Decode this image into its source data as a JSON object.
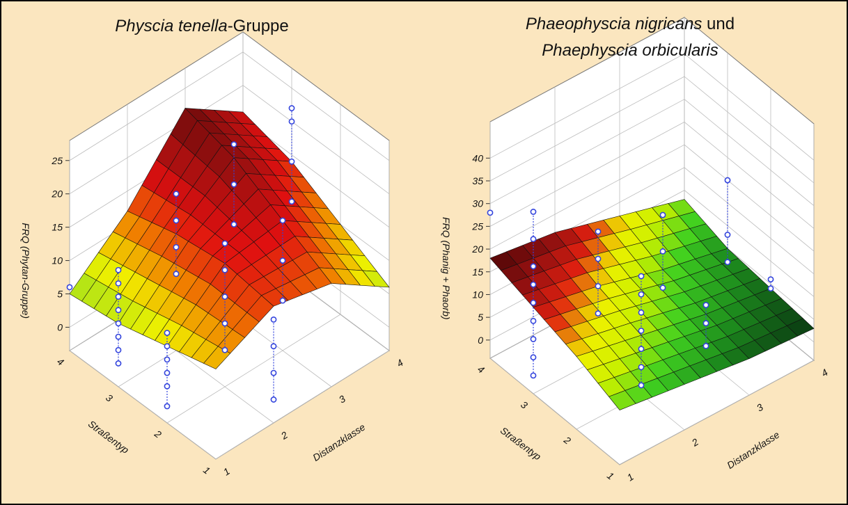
{
  "chart_data": [
    {
      "type": "surface3d",
      "title": [
        [
          {
            "text": "Physcia tenella",
            "italic": true
          },
          {
            "text": "-Gruppe",
            "italic": false
          }
        ]
      ],
      "xlabel": "Distanzklasse",
      "ylabel": "Straßentyp",
      "zlabel": "FRQ (Phytan-Gruppe)",
      "xlim": [
        1,
        4
      ],
      "xticks": [
        1,
        2,
        3,
        4
      ],
      "ylim": [
        1,
        4
      ],
      "yticks": [
        1,
        2,
        3,
        4
      ],
      "zlim": [
        -3.5,
        28
      ],
      "zticks": [
        0,
        5,
        10,
        15,
        20,
        25
      ],
      "grid": true,
      "surface_x": [
        1,
        2,
        3,
        4
      ],
      "surface_y": [
        1,
        2,
        3,
        4
      ],
      "surface_z": [
        [
          10,
          14,
          12,
          6
        ],
        [
          8,
          15,
          16,
          10
        ],
        [
          6,
          14,
          20,
          14
        ],
        [
          5,
          12,
          22,
          16
        ]
      ],
      "surface_colors": [
        "#9ee01e",
        "#f0f000",
        "#f08000",
        "#e01010",
        "#a01010",
        "#6a0a0a"
      ],
      "point_color": "#3344dd",
      "points": {
        "x": [
          1,
          1,
          1,
          1,
          1,
          1,
          1,
          1,
          1,
          1,
          1,
          1,
          1,
          1,
          1,
          2,
          2,
          2,
          2,
          2,
          2,
          2,
          2,
          2,
          2,
          2,
          2,
          2,
          3,
          3,
          3,
          3,
          3,
          3,
          4,
          4,
          4,
          4
        ],
        "y": [
          4,
          3,
          3,
          3,
          3,
          3,
          3,
          3,
          3,
          2,
          2,
          2,
          2,
          2,
          2,
          3,
          3,
          3,
          3,
          2,
          2,
          2,
          2,
          2,
          1,
          1,
          1,
          1,
          3,
          3,
          3,
          2,
          2,
          2,
          3,
          3,
          3,
          3
        ],
        "z": [
          6,
          0,
          2,
          4,
          6,
          8,
          10,
          12,
          14,
          -1,
          2,
          4,
          6,
          8,
          10,
          8,
          12,
          16,
          20,
          2,
          6,
          10,
          14,
          18,
          0,
          4,
          8,
          12,
          10,
          16,
          22,
          4,
          10,
          16,
          8,
          14,
          20,
          22
        ]
      }
    },
    {
      "type": "surface3d",
      "title": [
        [
          {
            "text": "Phaeophyscia nigricans",
            "italic": true
          },
          {
            "text": " und",
            "italic": false
          }
        ],
        [
          {
            "text": "Phaephyscia orbicularis",
            "italic": true
          }
        ]
      ],
      "xlabel": "Distanzklasse",
      "ylabel": "Straßentyp",
      "zlabel": "FRQ (Phanig + Phaorb)",
      "xlim": [
        1,
        4
      ],
      "xticks": [
        1,
        2,
        3,
        4
      ],
      "ylim": [
        1,
        4
      ],
      "yticks": [
        1,
        2,
        3,
        4
      ],
      "zlim": [
        -4,
        48
      ],
      "zticks": [
        0,
        5,
        10,
        15,
        20,
        25,
        30,
        35,
        40
      ],
      "grid": true,
      "surface_x": [
        1,
        2,
        3,
        4
      ],
      "surface_y": [
        1,
        2,
        3,
        4
      ],
      "surface_z": [
        [
          8,
          6,
          4,
          3
        ],
        [
          12,
          9,
          6,
          4
        ],
        [
          15,
          12,
          8,
          5
        ],
        [
          18,
          16,
          12,
          8
        ]
      ],
      "surface_colors": [
        "#0a3a12",
        "#1e8e1e",
        "#40d020",
        "#c8f000",
        "#f0f000",
        "#e02010",
        "#901010",
        "#4a0606"
      ],
      "point_color": "#3344dd",
      "points": {
        "x": [
          1,
          1,
          1,
          1,
          1,
          1,
          1,
          1,
          1,
          1,
          2,
          2,
          2,
          2,
          2,
          2,
          2,
          2,
          2,
          2,
          2,
          3,
          3,
          3,
          3,
          3,
          3,
          4,
          4,
          4,
          4,
          4
        ],
        "y": [
          4,
          3,
          3,
          3,
          3,
          3,
          3,
          3,
          3,
          3,
          3,
          3,
          3,
          3,
          2,
          2,
          2,
          2,
          2,
          2,
          2,
          3,
          3,
          3,
          2,
          2,
          2,
          3,
          3,
          3,
          2,
          2
        ],
        "z": [
          28,
          0,
          4,
          8,
          12,
          16,
          20,
          24,
          30,
          36,
          6,
          12,
          18,
          24,
          -2,
          2,
          6,
          10,
          14,
          18,
          22,
          4,
          12,
          20,
          -1,
          4,
          8,
          2,
          8,
          20,
          4,
          6
        ]
      }
    }
  ]
}
